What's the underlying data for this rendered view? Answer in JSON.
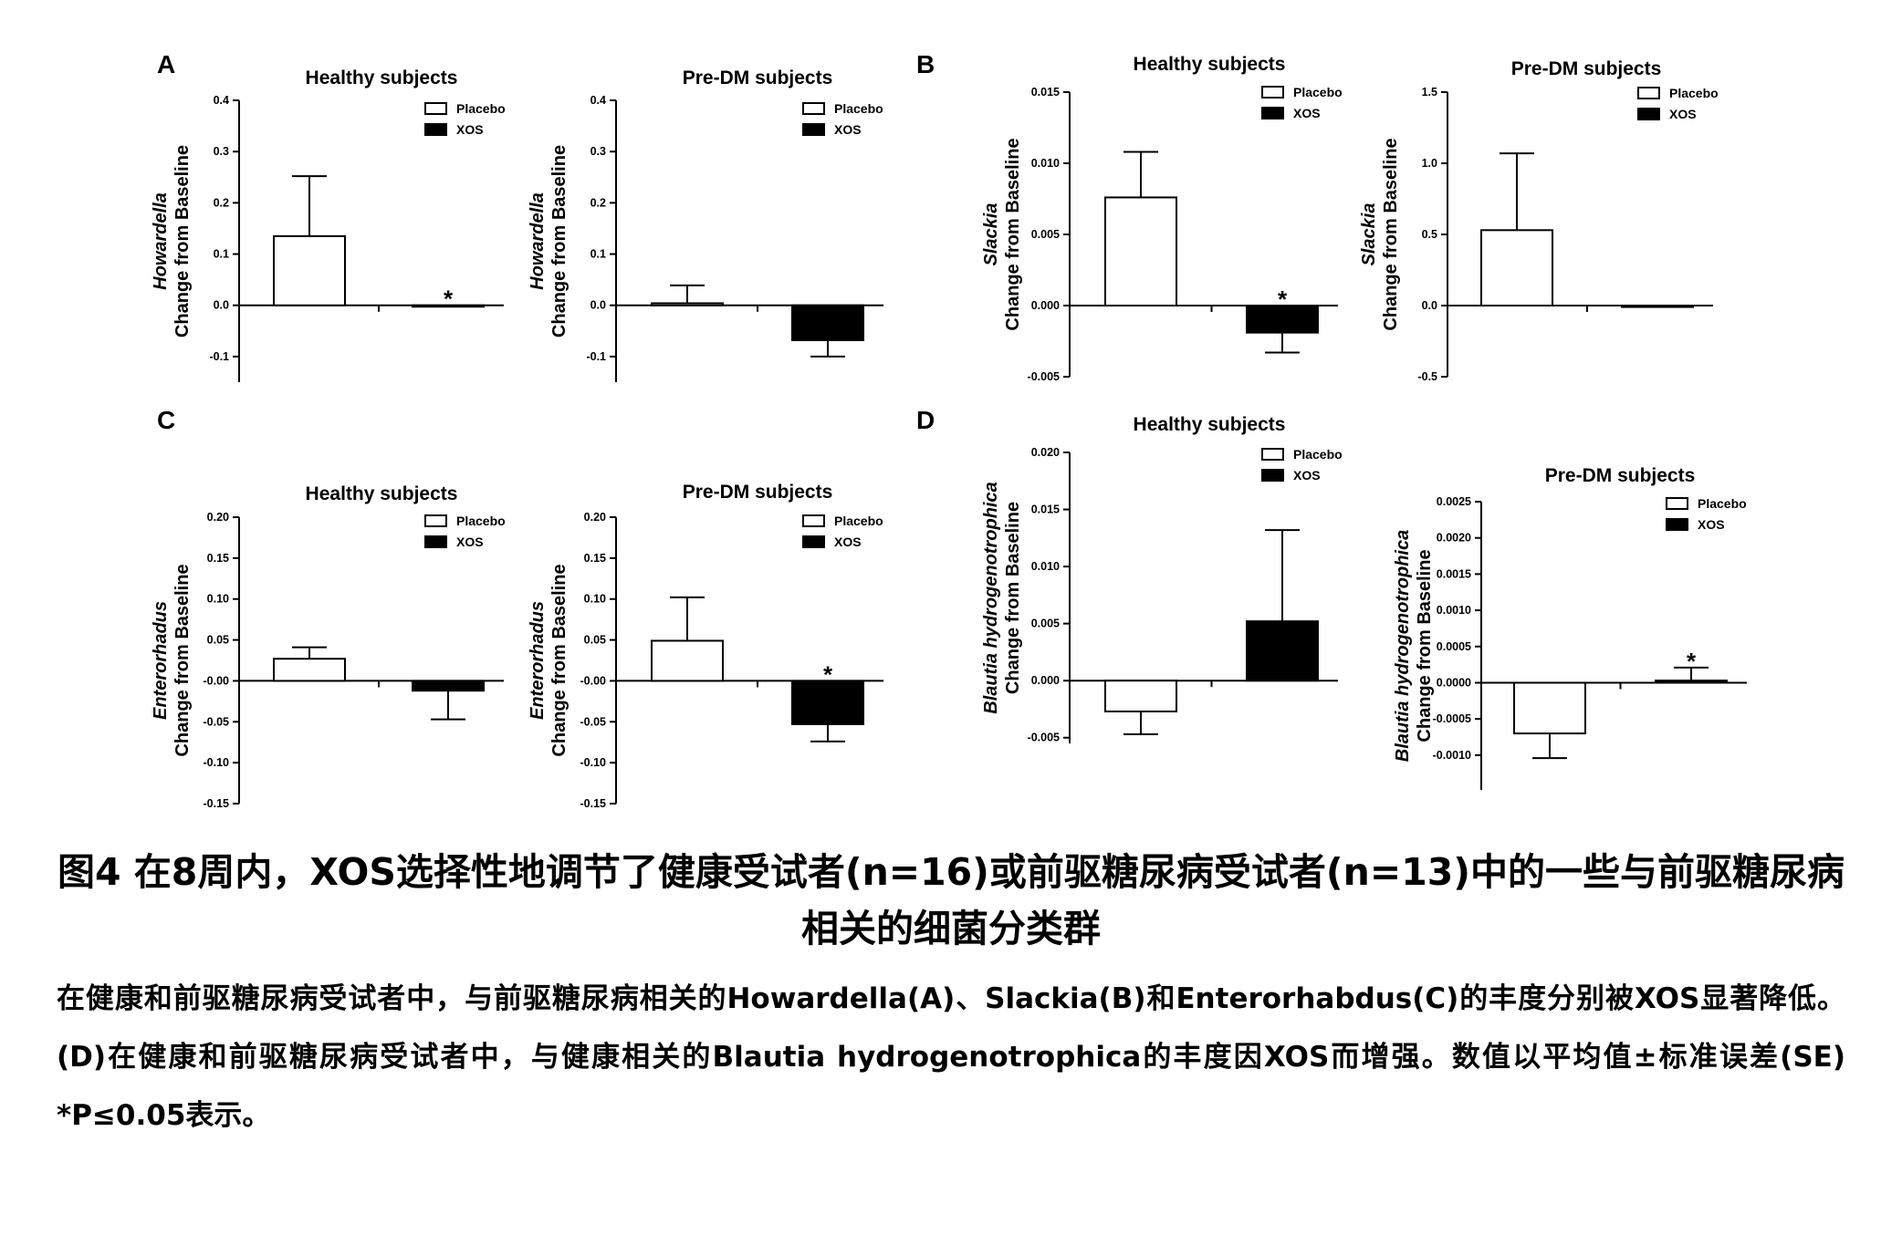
{
  "panels": [
    {
      "id": "A",
      "letter": "A",
      "title": "Healthy subjects",
      "ylabel_italic": "Howardella",
      "ylabel": "Change from Baseline",
      "ylim": [
        -0.15,
        0.4
      ],
      "yticks": [
        0.4,
        0.3,
        0.2,
        0.1,
        0.0,
        -0.1
      ],
      "ytick_labels": [
        "0.4",
        "0.3",
        "0.2",
        "0.1",
        "0.0",
        "-0.1"
      ],
      "legend": [
        "Placebo",
        "XOS"
      ],
      "bars": [
        {
          "group": "Placebo",
          "value": 0.135,
          "error": 0.117,
          "star": false
        },
        {
          "group": "XOS",
          "value": -0.002,
          "error": 0.0,
          "star": true,
          "star_text": "*"
        }
      ]
    },
    {
      "id": "A2",
      "letter": "",
      "title": "Pre-DM subjects",
      "ylabel_italic": "Howardella",
      "ylabel": "Change from Baseline",
      "ylim": [
        -0.15,
        0.4
      ],
      "yticks": [
        0.4,
        0.3,
        0.2,
        0.1,
        0.0,
        -0.1
      ],
      "ytick_labels": [
        "0.4",
        "0.3",
        "0.2",
        "0.1",
        "0.0",
        "-0.1"
      ],
      "legend": [
        "Placebo",
        "XOS"
      ],
      "bars": [
        {
          "group": "Placebo",
          "value": 0.004,
          "error": 0.035,
          "star": false
        },
        {
          "group": "XOS",
          "value": -0.068,
          "error": 0.032,
          "star": false
        }
      ]
    },
    {
      "id": "B",
      "letter": "B",
      "title": "Healthy subjects",
      "ylabel_italic": "Slackia",
      "ylabel": "Change from Baseline",
      "ylim": [
        -0.005,
        0.015
      ],
      "yticks": [
        0.015,
        0.01,
        0.005,
        0.0,
        -0.005
      ],
      "ytick_labels": [
        "0.015",
        "0.010",
        "0.005",
        "0.000",
        "-0.005"
      ],
      "legend": [
        "Placebo",
        "XOS"
      ],
      "bars": [
        {
          "group": "Placebo",
          "value": 0.0076,
          "error": 0.0032,
          "star": false
        },
        {
          "group": "XOS",
          "value": -0.0019,
          "error": 0.0014,
          "star": true,
          "star_text": "*"
        }
      ]
    },
    {
      "id": "B2",
      "letter": "",
      "title": "Pre-DM subjects",
      "ylabel_italic": "Slackia",
      "ylabel": "Change from Baseline",
      "ylim": [
        -0.5,
        1.5
      ],
      "yticks": [
        1.5,
        1.0,
        0.5,
        0.0,
        -0.5
      ],
      "ytick_labels": [
        "1.5",
        "1.0",
        "0.5",
        "0.0",
        "-0.5"
      ],
      "legend": [
        "Placebo",
        "XOS"
      ],
      "bars": [
        {
          "group": "Placebo",
          "value": 0.53,
          "error": 0.54,
          "star": false
        },
        {
          "group": "XOS",
          "value": -0.01,
          "error": 0.0,
          "star": false
        }
      ]
    },
    {
      "id": "C",
      "letter": "C",
      "title": "Healthy subjects",
      "ylabel_italic": "Enterorhadus",
      "ylabel": "Change from Baseline",
      "ylim": [
        -0.15,
        0.2
      ],
      "yticks": [
        0.2,
        0.15,
        0.1,
        0.05,
        0.0,
        -0.05,
        -0.1,
        -0.15
      ],
      "ytick_labels": [
        "0.20",
        "0.15",
        "0.10",
        "0.05",
        "-0.00",
        "-0.05",
        "-0.10",
        "-0.15"
      ],
      "legend": [
        "Placebo",
        "XOS"
      ],
      "bars": [
        {
          "group": "Placebo",
          "value": 0.027,
          "error": 0.014,
          "star": false
        },
        {
          "group": "XOS",
          "value": -0.012,
          "error": 0.035,
          "star": false
        }
      ]
    },
    {
      "id": "C2",
      "letter": "",
      "title": "Pre-DM subjects",
      "ylabel_italic": "Enterorhadus",
      "ylabel": "Change from Baseline",
      "ylim": [
        -0.15,
        0.2
      ],
      "yticks": [
        0.2,
        0.15,
        0.1,
        0.05,
        0.0,
        -0.05,
        -0.1,
        -0.15
      ],
      "ytick_labels": [
        "0.20",
        "0.15",
        "0.10",
        "0.05",
        "-0.00",
        "-0.05",
        "-0.10",
        "-0.15"
      ],
      "legend": [
        "Placebo",
        "XOS"
      ],
      "bars": [
        {
          "group": "Placebo",
          "value": 0.049,
          "error": 0.053,
          "star": false
        },
        {
          "group": "XOS",
          "value": -0.053,
          "error": 0.021,
          "star": true,
          "star_text": "*"
        }
      ]
    },
    {
      "id": "D",
      "letter": "D",
      "title": "Healthy subjects",
      "ylabel_italic": "Blautia hydrogenotrophica",
      "ylabel": "Change from Baseline",
      "ylim": [
        -0.0055,
        0.02
      ],
      "yticks": [
        0.02,
        0.015,
        0.01,
        0.005,
        0.0,
        -0.005
      ],
      "ytick_labels": [
        "0.020",
        "0.015",
        "0.010",
        "0.005",
        "0.000",
        "-0.005"
      ],
      "legend": [
        "Placebo",
        "XOS"
      ],
      "bars": [
        {
          "group": "Placebo",
          "value": -0.0027,
          "error": 0.002,
          "star": false
        },
        {
          "group": "XOS",
          "value": 0.0052,
          "error": 0.008,
          "star": false
        }
      ]
    },
    {
      "id": "D2",
      "letter": "",
      "title": "Pre-DM subjects",
      "ylabel_italic": "Blautia hydrogenotrophica",
      "ylabel": "Change from Baseline",
      "ylim": [
        -0.00148,
        0.0025
      ],
      "yticks": [
        0.0025,
        0.002,
        0.0015,
        0.001,
        0.0005,
        0.0,
        -0.0005,
        -0.001
      ],
      "ytick_labels": [
        "0.0025",
        "0.0020",
        "0.0015",
        "0.0010",
        "0.0005",
        "0.0000",
        "-0.0005",
        "-0.0010"
      ],
      "legend": [
        "Placebo",
        "XOS"
      ],
      "bars": [
        {
          "group": "Placebo",
          "value": -0.0007,
          "error": 0.00034,
          "star": false
        },
        {
          "group": "XOS",
          "value": 3e-05,
          "error": 0.00018,
          "star": true,
          "star_text": "*"
        }
      ]
    }
  ],
  "caption": {
    "title": "图4 在8周内，XOS选择性地调节了健康受试者(n=16)或前驱糖尿病受试者(n=13)中的一些与前驱糖尿病相关的细菌分类群",
    "body": "在健康和前驱糖尿病受试者中，与前驱糖尿病相关的Howardella(A)、Slackia(B)和Enterorhabdus(C)的丰度分别被XOS显著降低。(D)在健康和前驱糖尿病受试者中，与健康相关的Blautia  hydrogenotrophica的丰度因XOS而增强。数值以平均值±标准误差(SE) *P≤0.05表示。"
  }
}
